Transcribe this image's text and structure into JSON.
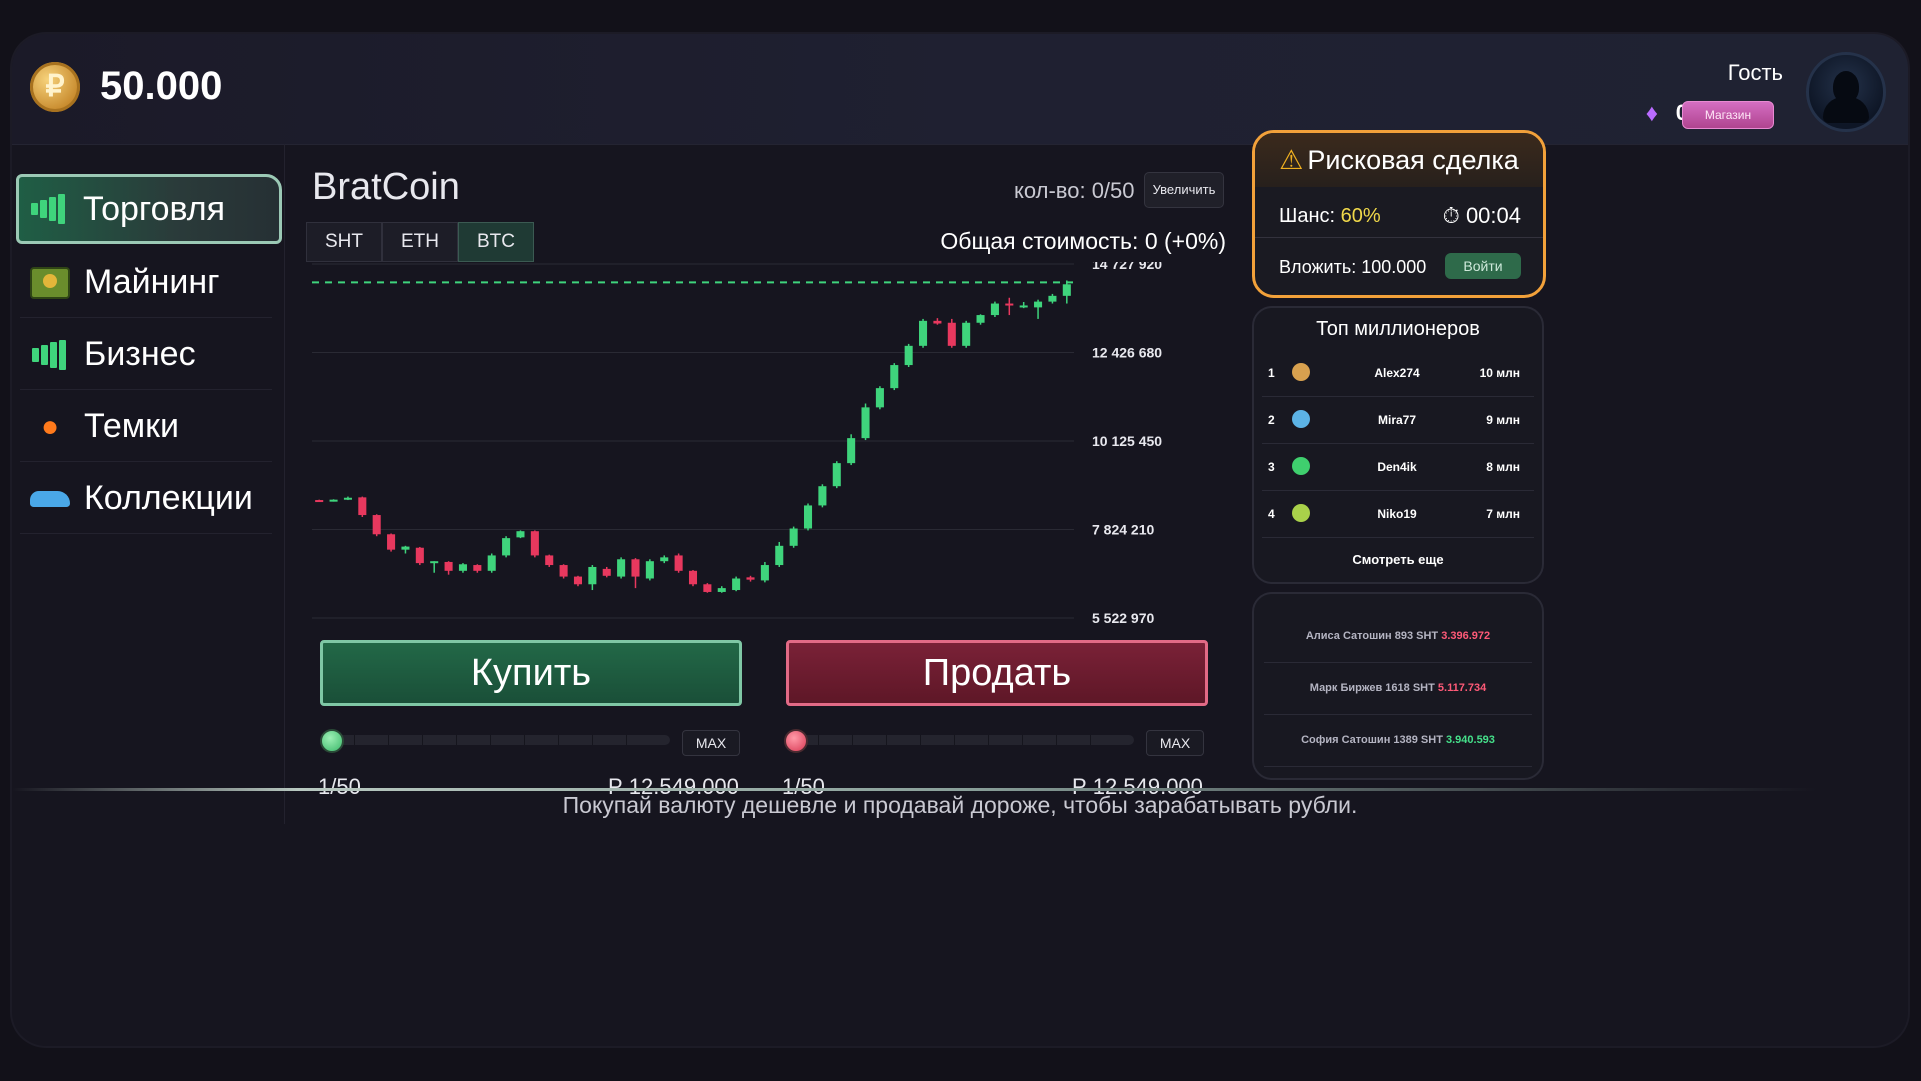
{
  "header": {
    "coin_symbol": "₽",
    "balance": "50.000",
    "guest_label": "Гость",
    "gems": "0",
    "shop_label": "Магазин"
  },
  "sidebar": {
    "items": [
      {
        "label": "Торговля",
        "icon": "chart-bars-icon",
        "active": true
      },
      {
        "label": "Майнинг",
        "icon": "cash-bundle-icon",
        "active": false
      },
      {
        "label": "Бизнес",
        "icon": "chart-bars-icon",
        "active": false
      },
      {
        "label": "Темки",
        "icon": "fire-icon",
        "active": false
      },
      {
        "label": "Коллекции",
        "icon": "car-icon",
        "active": false
      }
    ]
  },
  "trade": {
    "title": "BratCoin",
    "qty": "кол-во: 0/50",
    "increase_label": "Увеличить",
    "tabs": [
      "SHT",
      "ETH",
      "BTC"
    ],
    "active_tab": "BTC",
    "total": "Общая стоимость: 0 (+0%)",
    "buy_label": "Купить",
    "sell_label": "Продать",
    "max_label": "MAX",
    "buy_count": "1/50",
    "buy_price": "Р 12.549.000",
    "sell_count": "1/50",
    "sell_price": "Р 12.549.000"
  },
  "chart_data": {
    "type": "candlestick",
    "y_ticks": [
      "14 727 920",
      "12 426 680",
      "10 125 450",
      "7 824 210",
      "5 522 970"
    ],
    "ylim": [
      5522970,
      14727920
    ],
    "reference_line": 14250000,
    "colors": {
      "up": "#3fd47c",
      "down": "#e8385e",
      "reference": "#3fd47c"
    },
    "candles": [
      [
        8590000,
        8600000,
        8560000,
        8570000
      ],
      [
        8580000,
        8610000,
        8550000,
        8600000
      ],
      [
        8600000,
        8680000,
        8590000,
        8650000
      ],
      [
        8660000,
        8680000,
        8150000,
        8200000
      ],
      [
        8200000,
        8220000,
        7650000,
        7700000
      ],
      [
        7700000,
        7720000,
        7250000,
        7300000
      ],
      [
        7300000,
        7400000,
        7200000,
        7380000
      ],
      [
        7350000,
        7370000,
        6900000,
        6950000
      ],
      [
        6950000,
        7000000,
        6700000,
        7000000
      ],
      [
        6980000,
        7000000,
        6650000,
        6750000
      ],
      [
        6750000,
        6950000,
        6700000,
        6920000
      ],
      [
        6900000,
        6920000,
        6700000,
        6750000
      ],
      [
        6750000,
        7200000,
        6700000,
        7150000
      ],
      [
        7150000,
        7650000,
        7100000,
        7600000
      ],
      [
        7620000,
        7800000,
        7600000,
        7780000
      ],
      [
        7780000,
        7800000,
        7100000,
        7150000
      ],
      [
        7150000,
        7170000,
        6850000,
        6900000
      ],
      [
        6900000,
        6920000,
        6550000,
        6600000
      ],
      [
        6600000,
        6620000,
        6350000,
        6400000
      ],
      [
        6400000,
        6900000,
        6250000,
        6850000
      ],
      [
        6800000,
        6850000,
        6580000,
        6620000
      ],
      [
        6600000,
        7100000,
        6550000,
        7050000
      ],
      [
        7050000,
        7080000,
        6300000,
        6600000
      ],
      [
        6550000,
        7050000,
        6500000,
        7000000
      ],
      [
        7000000,
        7150000,
        6950000,
        7100000
      ],
      [
        7150000,
        7200000,
        6700000,
        6750000
      ],
      [
        6750000,
        6770000,
        6350000,
        6400000
      ],
      [
        6400000,
        6430000,
        6180000,
        6200000
      ],
      [
        6200000,
        6350000,
        6180000,
        6300000
      ],
      [
        6250000,
        6600000,
        6220000,
        6550000
      ],
      [
        6580000,
        6620000,
        6470000,
        6520000
      ],
      [
        6500000,
        6980000,
        6450000,
        6900000
      ],
      [
        6900000,
        7500000,
        6850000,
        7400000
      ],
      [
        7400000,
        7900000,
        7350000,
        7850000
      ],
      [
        7850000,
        8500000,
        7800000,
        8450000
      ],
      [
        8450000,
        9000000,
        8400000,
        8950000
      ],
      [
        8950000,
        9600000,
        8900000,
        9550000
      ],
      [
        9550000,
        10300000,
        9500000,
        10200000
      ],
      [
        10200000,
        11100000,
        10150000,
        11000000
      ],
      [
        11000000,
        11550000,
        10950000,
        11500000
      ],
      [
        11500000,
        12150000,
        11450000,
        12100000
      ],
      [
        12100000,
        12650000,
        12050000,
        12600000
      ],
      [
        12600000,
        13300000,
        12550000,
        13250000
      ],
      [
        13250000,
        13320000,
        13150000,
        13180000
      ],
      [
        13200000,
        13300000,
        12550000,
        12600000
      ],
      [
        12600000,
        13250000,
        12550000,
        13200000
      ],
      [
        13200000,
        13420000,
        13150000,
        13400000
      ],
      [
        13400000,
        13750000,
        13350000,
        13700000
      ],
      [
        13700000,
        13850000,
        13400000,
        13650000
      ],
      [
        13620000,
        13740000,
        13580000,
        13650000
      ],
      [
        13600000,
        13800000,
        13300000,
        13750000
      ],
      [
        13750000,
        13950000,
        13700000,
        13900000
      ],
      [
        13900000,
        14300000,
        13700000,
        14200000
      ]
    ]
  },
  "risk": {
    "title": "Рисковая сделка",
    "chance_label": "Шанс:",
    "chance_value": "60%",
    "timer": "00:04",
    "invest": "Вложить: 100.000",
    "enter_label": "Войти"
  },
  "leaders": {
    "title": "Топ миллионеров",
    "rows": [
      {
        "rank": "1",
        "name": "Alex274",
        "amount": "10 млн",
        "color": "#d8a14f"
      },
      {
        "rank": "2",
        "name": "Mira77",
        "amount": "9 млн",
        "color": "#5cb3e6"
      },
      {
        "rank": "3",
        "name": "Den4ik",
        "amount": "8 млн",
        "color": "#3fcf6e"
      },
      {
        "rank": "4",
        "name": "Niko19",
        "amount": "7 млн",
        "color": "#a9d14a"
      }
    ],
    "more_label": "Смотреть еще"
  },
  "feed": [
    {
      "text": "Алиса Сатошин 893 SHT",
      "value": "3.396.972",
      "color": "red"
    },
    {
      "text": "Марк Биржев 1618 SHT",
      "value": "5.117.734",
      "color": "red"
    },
    {
      "text": "София Сатошин 1389 SHT",
      "value": "3.940.593",
      "color": "green"
    }
  ],
  "footer_hint": "Покупай валюту дешевле и продавай дороже, чтобы зарабатывать рубли."
}
